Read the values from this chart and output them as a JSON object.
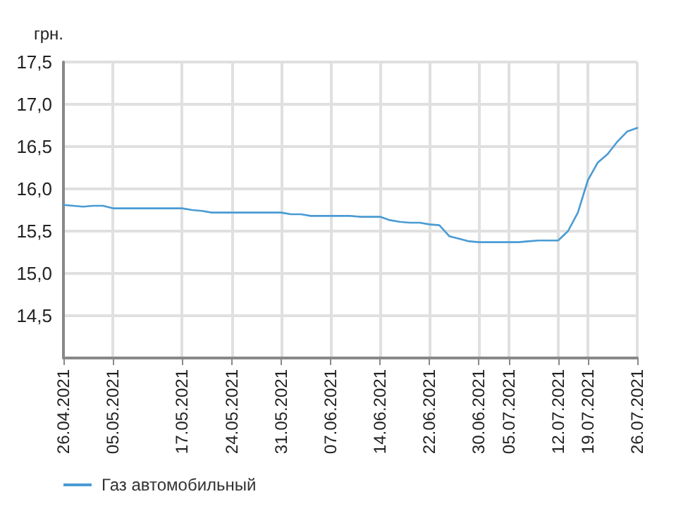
{
  "chart_data": {
    "type": "line",
    "ylabel": "грн.",
    "categories": [
      "26.04.2021",
      null,
      null,
      null,
      null,
      "05.05.2021",
      null,
      null,
      null,
      null,
      null,
      null,
      "17.05.2021",
      null,
      null,
      null,
      null,
      "24.05.2021",
      null,
      null,
      null,
      null,
      "31.05.2021",
      null,
      null,
      null,
      null,
      "07.06.2021",
      null,
      null,
      null,
      null,
      "14.06.2021",
      null,
      null,
      null,
      null,
      "22.06.2021",
      null,
      null,
      null,
      null,
      "30.06.2021",
      null,
      null,
      "05.07.2021",
      null,
      null,
      null,
      null,
      "12.07.2021",
      null,
      null,
      "19.07.2021",
      null,
      null,
      null,
      null,
      "26.07.2021"
    ],
    "series": [
      {
        "name": "Газ автомобильный",
        "color": "#4a9bd4",
        "values": [
          15.81,
          15.8,
          15.79,
          15.8,
          15.8,
          15.77,
          15.77,
          15.77,
          15.77,
          15.77,
          15.77,
          15.77,
          15.77,
          15.75,
          15.74,
          15.72,
          15.72,
          15.72,
          15.72,
          15.72,
          15.72,
          15.72,
          15.72,
          15.7,
          15.7,
          15.68,
          15.68,
          15.68,
          15.68,
          15.68,
          15.67,
          15.67,
          15.67,
          15.63,
          15.61,
          15.6,
          15.6,
          15.58,
          15.57,
          15.44,
          15.41,
          15.38,
          15.37,
          15.37,
          15.37,
          15.37,
          15.37,
          15.38,
          15.39,
          15.39,
          15.39,
          15.5,
          15.72,
          16.1,
          16.31,
          16.41,
          16.56,
          16.68,
          16.72
        ]
      }
    ],
    "ylim": [
      14,
      17.5
    ],
    "yticks": [
      {
        "value": 14.5,
        "label": "14,5"
      },
      {
        "value": 15,
        "label": "15,0"
      },
      {
        "value": 15.5,
        "label": "15,5"
      },
      {
        "value": 16,
        "label": "16,0"
      },
      {
        "value": 16.5,
        "label": "16,5"
      },
      {
        "value": 17,
        "label": "17,0"
      },
      {
        "value": 17.5,
        "label": "17,5"
      }
    ],
    "grid": true,
    "legend": "bottom left",
    "marker": "none",
    "line_style": "solid"
  }
}
